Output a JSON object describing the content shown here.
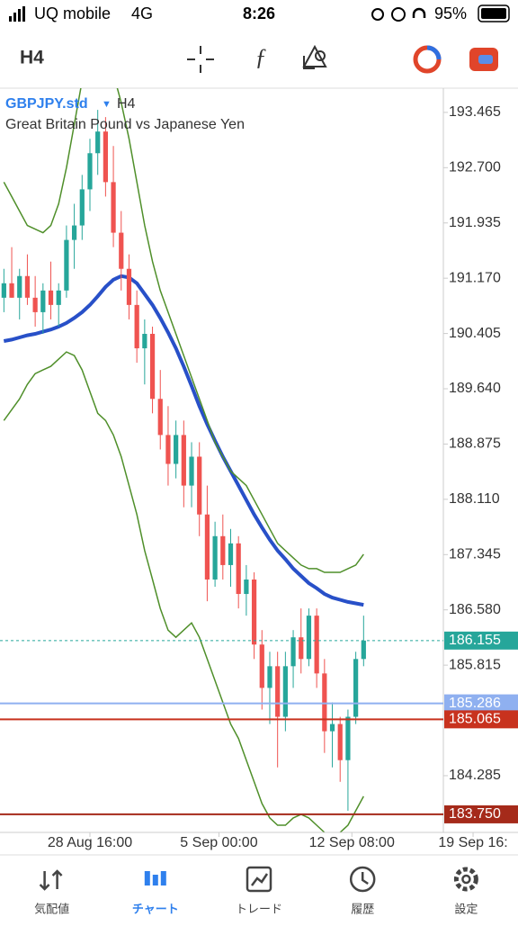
{
  "status_bar": {
    "carrier": "UQ mobile",
    "network": "4G",
    "time": "8:26",
    "battery": "95%"
  },
  "toolbar": {
    "timeframe": "H4"
  },
  "chart_data": {
    "type": "candlestick",
    "symbol": "GBPJPY.std",
    "timeframe": "H4",
    "description": "Great Britain Pound vs Japanese Yen",
    "up_color": "#26a69a",
    "down_color": "#ef5350",
    "open": [
      190.9,
      191.1,
      190.9,
      191.2,
      190.9,
      190.7,
      191.0,
      190.8,
      191.0,
      191.7,
      191.9,
      192.4,
      192.9,
      193.2,
      192.5,
      191.8,
      191.3,
      190.8,
      190.2,
      190.4,
      189.5,
      189.0,
      188.6,
      189.0,
      188.3,
      188.7,
      187.9,
      187.0,
      187.6,
      187.2,
      187.5,
      186.8,
      187.0,
      186.1,
      185.5,
      185.8,
      185.1,
      185.8,
      186.2,
      185.9,
      186.5,
      185.7,
      184.9,
      185.0,
      184.5,
      185.1,
      185.9
    ],
    "high": [
      191.3,
      191.6,
      191.3,
      191.5,
      191.2,
      191.1,
      191.4,
      191.1,
      191.9,
      192.2,
      192.6,
      193.1,
      193.5,
      193.4,
      193.0,
      192.1,
      191.5,
      191.0,
      190.6,
      190.5,
      189.9,
      189.4,
      189.2,
      189.2,
      188.9,
      188.9,
      188.3,
      187.8,
      187.9,
      187.7,
      187.6,
      187.2,
      187.1,
      186.3,
      186.0,
      186.0,
      186.0,
      186.3,
      186.6,
      186.6,
      186.6,
      185.9,
      185.3,
      185.1,
      185.2,
      186.0,
      186.5
    ],
    "low": [
      190.7,
      190.9,
      190.6,
      190.8,
      190.5,
      190.4,
      190.6,
      190.5,
      190.9,
      191.3,
      191.7,
      192.1,
      192.6,
      192.3,
      191.6,
      191.0,
      190.6,
      190.0,
      189.7,
      189.3,
      188.8,
      188.3,
      188.4,
      188.0,
      188.0,
      187.6,
      186.7,
      186.9,
      187.0,
      186.9,
      186.6,
      186.5,
      185.9,
      185.2,
      185.0,
      184.4,
      184.9,
      185.5,
      185.7,
      185.8,
      185.5,
      184.6,
      184.4,
      184.2,
      183.8,
      185.0,
      185.8
    ],
    "close": [
      191.1,
      190.9,
      191.2,
      190.9,
      190.7,
      191.0,
      190.8,
      191.0,
      191.7,
      191.9,
      192.4,
      192.9,
      193.2,
      192.5,
      191.8,
      191.3,
      190.8,
      190.2,
      190.4,
      189.5,
      189.0,
      188.6,
      189.0,
      188.3,
      188.7,
      187.9,
      187.0,
      187.6,
      187.2,
      187.5,
      186.8,
      187.0,
      186.1,
      185.5,
      185.8,
      185.1,
      185.8,
      186.2,
      185.9,
      186.5,
      185.7,
      184.9,
      185.0,
      184.5,
      185.1,
      185.9,
      186.155
    ],
    "indicators": [
      {
        "color": "#2850c8",
        "width": 4,
        "values": [
          190.3,
          190.32,
          190.35,
          190.38,
          190.4,
          190.43,
          190.46,
          190.5,
          190.55,
          190.62,
          190.7,
          190.8,
          190.92,
          191.05,
          191.15,
          191.2,
          191.18,
          191.1,
          190.95,
          190.8,
          190.62,
          190.42,
          190.2,
          189.95,
          189.68,
          189.4,
          189.15,
          188.92,
          188.7,
          188.5,
          188.3,
          188.1,
          187.9,
          187.72,
          187.55,
          187.4,
          187.28,
          187.15,
          187.05,
          186.95,
          186.88,
          186.8,
          186.75,
          186.72,
          186.69,
          186.67,
          186.65
        ]
      },
      {
        "color": "#4f8f2a",
        "width": 1.5,
        "values": [
          192.5,
          192.3,
          192.1,
          191.9,
          191.85,
          191.8,
          191.9,
          192.2,
          192.7,
          193.3,
          193.9,
          194.2,
          194.3,
          194.2,
          194.0,
          193.6,
          193.1,
          192.5,
          191.9,
          191.4,
          191.0,
          190.7,
          190.4,
          190.1,
          189.8,
          189.5,
          189.2,
          188.9,
          188.7,
          188.5,
          188.4,
          188.3,
          188.1,
          187.9,
          187.7,
          187.5,
          187.4,
          187.3,
          187.2,
          187.15,
          187.15,
          187.1,
          187.1,
          187.1,
          187.15,
          187.2,
          187.35
        ]
      },
      {
        "color": "#4f8f2a",
        "width": 1.5,
        "values": [
          189.2,
          189.35,
          189.5,
          189.7,
          189.85,
          189.9,
          189.95,
          190.05,
          190.15,
          190.1,
          189.9,
          189.6,
          189.3,
          189.2,
          189.0,
          188.7,
          188.3,
          187.9,
          187.4,
          187.0,
          186.6,
          186.3,
          186.2,
          186.3,
          186.4,
          186.2,
          185.9,
          185.6,
          185.3,
          185.0,
          184.8,
          184.5,
          184.2,
          183.9,
          183.7,
          183.6,
          183.6,
          183.7,
          183.75,
          183.7,
          183.6,
          183.5,
          183.45,
          183.5,
          183.6,
          183.8,
          184.0
        ]
      }
    ],
    "price_lines": [
      {
        "value": 186.155,
        "color": "#26a69a",
        "dashed": true
      },
      {
        "value": 185.286,
        "color": "#8fb0f0",
        "dashed": false
      },
      {
        "value": 185.065,
        "color": "#c8321e",
        "dashed": false
      },
      {
        "value": 183.75,
        "label": "183.750",
        "color": "#a52a1a",
        "dashed": false
      }
    ],
    "xlim": [
      -0.5,
      56.2
    ],
    "xticks": [
      {
        "value": 11,
        "label": "28 Aug 16:00"
      },
      {
        "value": 27.5,
        "label": "5 Sep 00:00"
      },
      {
        "value": 44.5,
        "label": "12 Sep 08:00"
      },
      {
        "value": 60,
        "label": "19 Sep 16:"
      }
    ],
    "ylim": [
      183.5,
      193.8
    ],
    "yticks": [
      193.465,
      {
        "value": 192.7,
        "label": "192.700"
      },
      191.935,
      {
        "value": 191.17,
        "label": "191.170"
      },
      190.405,
      {
        "value": 189.64,
        "label": "189.640"
      },
      188.875,
      {
        "value": 188.11,
        "label": "188.110"
      },
      187.345,
      {
        "value": 186.58,
        "label": "186.580"
      },
      185.815,
      184.285
    ]
  },
  "nav": {
    "items": [
      "気配値",
      "チャート",
      "トレード",
      "履歴",
      "設定"
    ],
    "active": 1
  }
}
